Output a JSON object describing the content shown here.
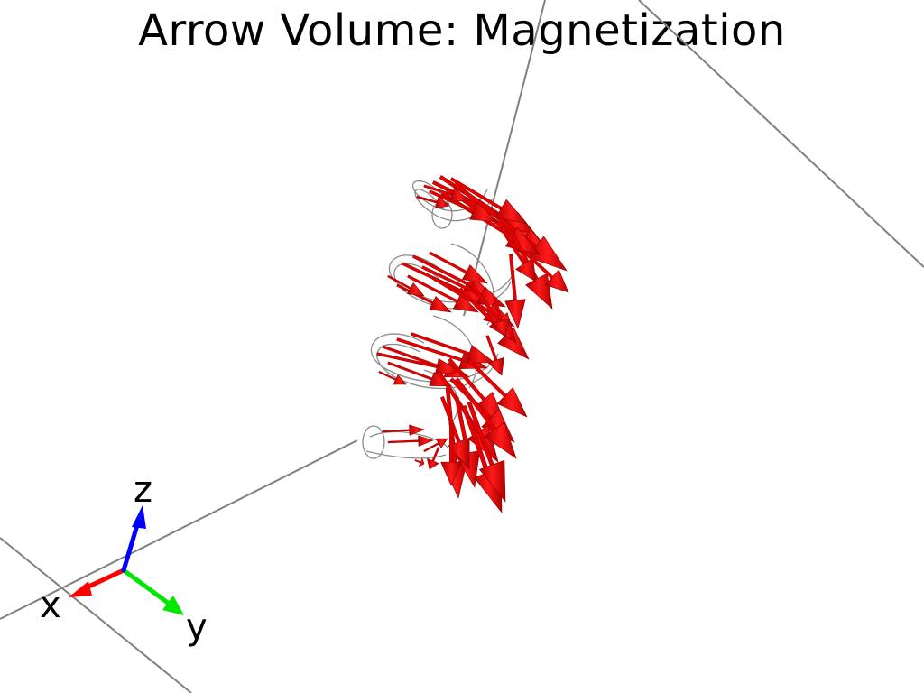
{
  "title": "Arrow Volume: Magnetization",
  "axes": {
    "x_label": "x",
    "y_label": "y",
    "z_label": "z",
    "x_color": "#ff0000",
    "y_color": "#00ff00",
    "z_color": "#0000ff"
  },
  "colors": {
    "arrow": "#e60000",
    "tube": "#999999",
    "frame": "#808080"
  }
}
